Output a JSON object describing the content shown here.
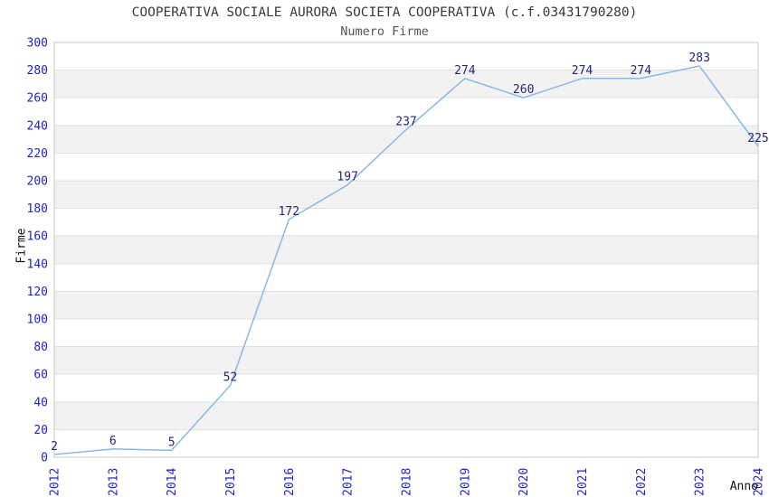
{
  "chart_data": {
    "type": "line",
    "title": "COOPERATIVA SOCIALE AURORA SOCIETA COOPERATIVA (c.f.03431790280)",
    "subtitle": "Numero Firme",
    "xlabel": "Anno",
    "ylabel": "Firme",
    "categories": [
      "2012",
      "2013",
      "2014",
      "2015",
      "2016",
      "2017",
      "2018",
      "2019",
      "2020",
      "2021",
      "2022",
      "2023",
      "2024"
    ],
    "values": [
      2,
      6,
      5,
      52,
      172,
      197,
      237,
      274,
      260,
      274,
      274,
      283,
      225
    ],
    "ylim": [
      0,
      300
    ],
    "ytick_step": 20,
    "legend": "none",
    "grid": "horizontal-gridlines-with-alternating-bands",
    "colors": {
      "line": "#88b8e8",
      "tick_label": "#2222cc",
      "data_label": "#262678",
      "band": "#f2f2f2",
      "gridline": "#e0e0e0",
      "border": "#c8c8c8",
      "title": "#3a3a3a",
      "subtitle": "#555555",
      "axis_label": "#141414",
      "background": "#ffffff"
    }
  }
}
